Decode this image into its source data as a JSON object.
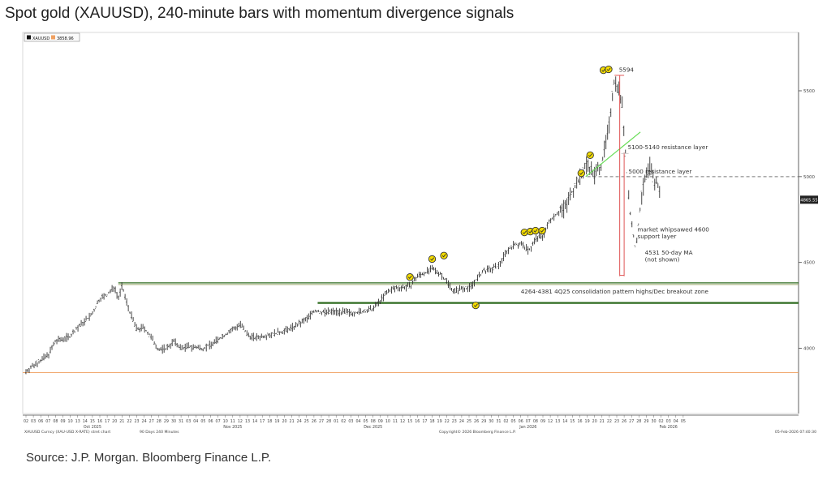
{
  "page": {
    "title": "Spot gold (XAUUSD), 240-minute bars with momentum divergence signals",
    "source": "Source: J.P. Morgan. Bloomberg Finance L.P."
  },
  "legend": {
    "series_label": "XAUUSD",
    "last_label": "3858.96",
    "series_color": "#111111",
    "last_color": "#f0a060"
  },
  "footer": {
    "left": "XAUUSD Curncy (XAU-USD X-RATE) stret chart",
    "period": "90 Days 240 Minutes",
    "copyright": "Copyright© 2026 Bloomberg Finance L.P.",
    "timestamp": "05-Feb-2026 07:40:30"
  },
  "colors": {
    "bars": "#333333",
    "marker_fill": "#f4dc00",
    "marker_stroke": "#333333",
    "resistance_dash": "#777777",
    "zone_line": "#2e6b1e",
    "zone_line_light": "#9aa96a",
    "trend_line": "#66dd55",
    "drop_line": "#e05555",
    "baseline": "#f0a060"
  },
  "chart_data": {
    "type": "line",
    "title": "Spot gold (XAUUSD), 240-minute bars with momentum divergence signals",
    "ylim": [
      3620,
      5840
    ],
    "y_ticks": [
      4000,
      4500,
      5000,
      5500
    ],
    "last_price": "4865.55",
    "x_day_labels": [
      "02",
      "03",
      "06",
      "07",
      "08",
      "09",
      "10",
      "13",
      "14",
      "15",
      "16",
      "17",
      "20",
      "21",
      "22",
      "23",
      "24",
      "27",
      "28",
      "29",
      "30",
      "31",
      "03",
      "04",
      "05",
      "06",
      "07",
      "10",
      "11",
      "12",
      "13",
      "14",
      "17",
      "18",
      "19",
      "20",
      "21",
      "24",
      "25",
      "26",
      "27",
      "28",
      "01",
      "02",
      "03",
      "04",
      "05",
      "08",
      "09",
      "10",
      "11",
      "12",
      "15",
      "16",
      "17",
      "18",
      "19",
      "22",
      "23",
      "24",
      "25",
      "26",
      "29",
      "30",
      "31",
      "02",
      "05",
      "06",
      "07",
      "08",
      "09",
      "12",
      "13",
      "14",
      "15",
      "16",
      "19",
      "20",
      "21",
      "22",
      "23",
      "26",
      "27",
      "28",
      "29",
      "30",
      "02",
      "03",
      "04",
      "05"
    ],
    "month_labels": [
      {
        "label": "Oct 2025",
        "day_index": 9
      },
      {
        "label": "Nov 2025",
        "day_index": 28
      },
      {
        "label": "Dec 2025",
        "day_index": 47
      },
      {
        "label": "Jan 2026",
        "day_index": 68
      },
      {
        "label": "Feb 2026",
        "day_index": 87
      }
    ],
    "price_path": [
      {
        "d": 0,
        "p": 3865
      },
      {
        "d": 1,
        "p": 3900
      },
      {
        "d": 3,
        "p": 3960
      },
      {
        "d": 4,
        "p": 4040
      },
      {
        "d": 6,
        "p": 4070
      },
      {
        "d": 7,
        "p": 4120
      },
      {
        "d": 9,
        "p": 4200
      },
      {
        "d": 10,
        "p": 4290
      },
      {
        "d": 11,
        "p": 4310
      },
      {
        "d": 12,
        "p": 4360
      },
      {
        "d": 12.5,
        "p": 4290
      },
      {
        "d": 13,
        "p": 4360
      },
      {
        "d": 14,
        "p": 4220
      },
      {
        "d": 15,
        "p": 4110
      },
      {
        "d": 16,
        "p": 4120
      },
      {
        "d": 17,
        "p": 4060
      },
      {
        "d": 18,
        "p": 3990
      },
      {
        "d": 19,
        "p": 4000
      },
      {
        "d": 20,
        "p": 4040
      },
      {
        "d": 21,
        "p": 4000
      },
      {
        "d": 22,
        "p": 4010
      },
      {
        "d": 24,
        "p": 4000
      },
      {
        "d": 25,
        "p": 4020
      },
      {
        "d": 27,
        "p": 4080
      },
      {
        "d": 28,
        "p": 4110
      },
      {
        "d": 29,
        "p": 4140
      },
      {
        "d": 30,
        "p": 4080
      },
      {
        "d": 31,
        "p": 4060
      },
      {
        "d": 33,
        "p": 4080
      },
      {
        "d": 35,
        "p": 4100
      },
      {
        "d": 37,
        "p": 4140
      },
      {
        "d": 38,
        "p": 4170
      },
      {
        "d": 39,
        "p": 4220
      },
      {
        "d": 40,
        "p": 4210
      },
      {
        "d": 42,
        "p": 4215
      },
      {
        "d": 44,
        "p": 4205
      },
      {
        "d": 46,
        "p": 4215
      },
      {
        "d": 47,
        "p": 4230
      },
      {
        "d": 48,
        "p": 4280
      },
      {
        "d": 49,
        "p": 4330
      },
      {
        "d": 50,
        "p": 4350
      },
      {
        "d": 52,
        "p": 4360
      },
      {
        "d": 53,
        "p": 4420
      },
      {
        "d": 54,
        "p": 4440
      },
      {
        "d": 55,
        "p": 4460
      },
      {
        "d": 56,
        "p": 4440
      },
      {
        "d": 57,
        "p": 4390
      },
      {
        "d": 58,
        "p": 4330
      },
      {
        "d": 59,
        "p": 4350
      },
      {
        "d": 60,
        "p": 4350
      },
      {
        "d": 61,
        "p": 4400
      },
      {
        "d": 62,
        "p": 4450
      },
      {
        "d": 63,
        "p": 4460
      },
      {
        "d": 64,
        "p": 4480
      },
      {
        "d": 65,
        "p": 4560
      },
      {
        "d": 66,
        "p": 4600
      },
      {
        "d": 67,
        "p": 4610
      },
      {
        "d": 68,
        "p": 4570
      },
      {
        "d": 68.5,
        "p": 4590
      },
      {
        "d": 69,
        "p": 4640
      },
      {
        "d": 70,
        "p": 4650
      },
      {
        "d": 71,
        "p": 4750
      },
      {
        "d": 72,
        "p": 4790
      },
      {
        "d": 73,
        "p": 4820
      },
      {
        "d": 74,
        "p": 4920
      },
      {
        "d": 75,
        "p": 4990
      },
      {
        "d": 76,
        "p": 5080
      },
      {
        "d": 77,
        "p": 5010
      },
      {
        "d": 78,
        "p": 5080
      },
      {
        "d": 79,
        "p": 5300
      },
      {
        "d": 79.6,
        "p": 5560
      },
      {
        "d": 80.2,
        "p": 5530
      },
      {
        "d": 80.8,
        "p": 5400
      },
      {
        "d": 81.3,
        "p": 5050
      },
      {
        "d": 81.8,
        "p": 4800
      },
      {
        "d": 82.2,
        "p": 4680
      },
      {
        "d": 82.6,
        "p": 4560
      },
      {
        "d": 83,
        "p": 4750
      },
      {
        "d": 83.4,
        "p": 4900
      },
      {
        "d": 84,
        "p": 5000
      },
      {
        "d": 84.5,
        "p": 5060
      },
      {
        "d": 85,
        "p": 4980
      },
      {
        "d": 85.5,
        "p": 4960
      },
      {
        "d": 86,
        "p": 4865
      }
    ],
    "signal_markers": [
      {
        "d": 78.2,
        "p": 5620
      },
      {
        "d": 78.9,
        "p": 5625
      },
      {
        "d": 76.4,
        "p": 5125
      },
      {
        "d": 75.2,
        "p": 5020
      },
      {
        "d": 67.5,
        "p": 4675
      },
      {
        "d": 68.3,
        "p": 4680
      },
      {
        "d": 69.0,
        "p": 4685
      },
      {
        "d": 69.9,
        "p": 4685
      },
      {
        "d": 56.6,
        "p": 4540
      },
      {
        "d": 55.0,
        "p": 4520
      },
      {
        "d": 52.0,
        "p": 4415
      },
      {
        "d": 60.9,
        "p": 4250
      }
    ],
    "levels": [
      {
        "price": 5000,
        "label": "5000 resistance layer",
        "style": "dashed"
      },
      {
        "price": 4381,
        "label": "",
        "style": "light"
      },
      {
        "price": 4264,
        "label": "",
        "style": "heavy"
      },
      {
        "price": 3858.96,
        "label": "",
        "style": "baseline"
      }
    ],
    "annotations": [
      {
        "text": "5594",
        "d": 80.3,
        "p": 5610
      },
      {
        "text": "5100-5140 resistance layer",
        "d": 81.5,
        "p": 5160
      },
      {
        "text": "5000 resistance layer",
        "d": 81.6,
        "p": 5018
      },
      {
        "text": "market whipsawed 4600",
        "d": 82.8,
        "p": 4680
      },
      {
        "text": "support layer",
        "d": 82.8,
        "p": 4640
      },
      {
        "text": "4531 50-day MA",
        "d": 83.8,
        "p": 4545
      },
      {
        "text": "(not shown)",
        "d": 83.8,
        "p": 4505
      },
      {
        "text": "4264-4381 4Q25 consolidation pattern highs/Dec breakout zone",
        "d": 67.0,
        "p": 4320
      }
    ]
  }
}
